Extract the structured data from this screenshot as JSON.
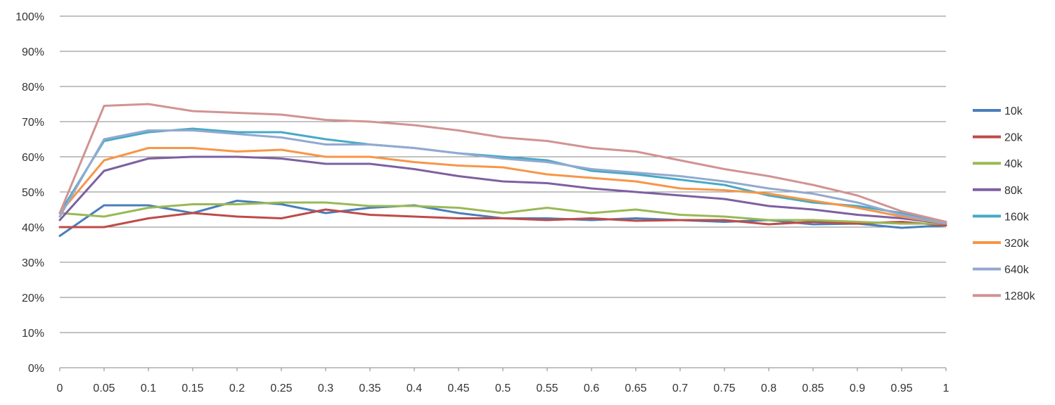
{
  "chart_data": {
    "type": "line",
    "title": "",
    "xlabel": "",
    "ylabel": "",
    "xlim": [
      0,
      1
    ],
    "ylim": [
      0,
      1
    ],
    "grid": true,
    "legend_position": "right",
    "x_ticks": [
      "0",
      "0.05",
      "0.1",
      "0.15",
      "0.2",
      "0.25",
      "0.3",
      "0.35",
      "0.4",
      "0.45",
      "0.5",
      "0.55",
      "0.6",
      "0.65",
      "0.7",
      "0.75",
      "0.8",
      "0.85",
      "0.9",
      "0.95",
      "1"
    ],
    "y_ticks": [
      "0%",
      "10%",
      "20%",
      "30%",
      "40%",
      "50%",
      "60%",
      "70%",
      "80%",
      "90%",
      "100%"
    ],
    "x": [
      0,
      0.05,
      0.1,
      0.15,
      0.2,
      0.25,
      0.3,
      0.35,
      0.4,
      0.45,
      0.5,
      0.55,
      0.6,
      0.65,
      0.7,
      0.75,
      0.8,
      0.85,
      0.9,
      0.95,
      1
    ],
    "series": [
      {
        "name": "10k",
        "color": "#4a7ebb",
        "values": [
          0.375,
          0.462,
          0.462,
          0.44,
          0.475,
          0.465,
          0.44,
          0.455,
          0.462,
          0.44,
          0.425,
          0.425,
          0.42,
          0.425,
          0.42,
          0.415,
          0.42,
          0.408,
          0.41,
          0.398,
          0.405
        ]
      },
      {
        "name": "20k",
        "color": "#be4b48",
        "values": [
          0.4,
          0.4,
          0.425,
          0.44,
          0.43,
          0.425,
          0.45,
          0.435,
          0.43,
          0.425,
          0.425,
          0.42,
          0.425,
          0.418,
          0.42,
          0.42,
          0.408,
          0.415,
          0.41,
          0.415,
          0.405
        ]
      },
      {
        "name": "40k",
        "color": "#98b954",
        "values": [
          0.44,
          0.43,
          0.455,
          0.465,
          0.465,
          0.47,
          0.47,
          0.46,
          0.46,
          0.455,
          0.44,
          0.455,
          0.44,
          0.45,
          0.435,
          0.43,
          0.42,
          0.42,
          0.415,
          0.41,
          0.41
        ]
      },
      {
        "name": "80k",
        "color": "#7d60a0",
        "values": [
          0.42,
          0.56,
          0.595,
          0.6,
          0.6,
          0.595,
          0.58,
          0.58,
          0.565,
          0.545,
          0.53,
          0.525,
          0.51,
          0.5,
          0.49,
          0.48,
          0.46,
          0.45,
          0.435,
          0.425,
          0.41
        ]
      },
      {
        "name": "160k",
        "color": "#46aac5",
        "values": [
          0.44,
          0.645,
          0.67,
          0.68,
          0.67,
          0.67,
          0.65,
          0.635,
          0.625,
          0.61,
          0.6,
          0.59,
          0.56,
          0.55,
          0.535,
          0.52,
          0.49,
          0.47,
          0.46,
          0.44,
          0.41
        ]
      },
      {
        "name": "320k",
        "color": "#f79646",
        "values": [
          0.44,
          0.59,
          0.625,
          0.625,
          0.615,
          0.62,
          0.6,
          0.6,
          0.585,
          0.575,
          0.57,
          0.55,
          0.54,
          0.53,
          0.51,
          0.505,
          0.495,
          0.475,
          0.455,
          0.43,
          0.41
        ]
      },
      {
        "name": "640k",
        "color": "#93a9d0",
        "values": [
          0.43,
          0.65,
          0.675,
          0.675,
          0.665,
          0.655,
          0.635,
          0.635,
          0.625,
          0.61,
          0.595,
          0.585,
          0.565,
          0.555,
          0.545,
          0.53,
          0.51,
          0.495,
          0.47,
          0.435,
          0.41
        ]
      },
      {
        "name": "1280k",
        "color": "#d19392",
        "values": [
          0.44,
          0.745,
          0.75,
          0.73,
          0.725,
          0.72,
          0.705,
          0.7,
          0.69,
          0.675,
          0.655,
          0.645,
          0.625,
          0.615,
          0.59,
          0.565,
          0.545,
          0.52,
          0.49,
          0.445,
          0.415
        ]
      }
    ]
  }
}
